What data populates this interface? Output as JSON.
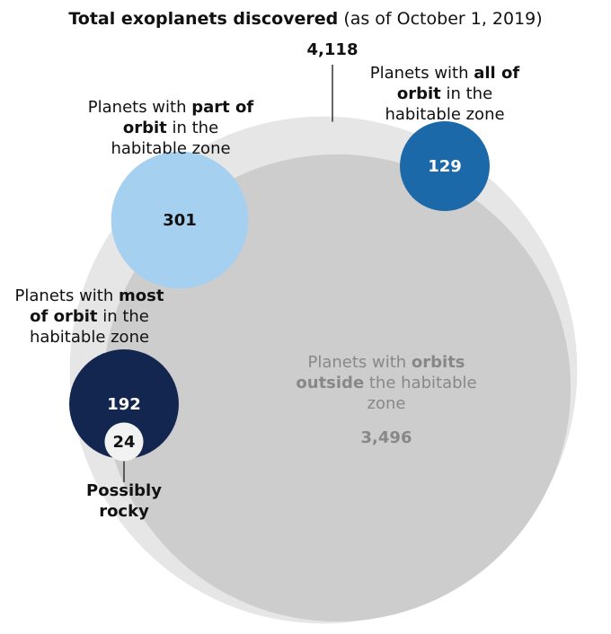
{
  "chart_data": {
    "type": "bubble",
    "title": "Total exoplanets discovered",
    "subtitle": "(as of October 1, 2019)",
    "total": {
      "value": 4118,
      "value_label": "4,118",
      "color": "#e6e6e6"
    },
    "groups": [
      {
        "label": [
          "Planets with ",
          "part of orbit",
          " in the habitable zone"
        ],
        "value": 301,
        "color": "#a6d0ef",
        "label_color": "#111111"
      },
      {
        "label": [
          "Planets with ",
          "all of orbit",
          " in the habitable zone"
        ],
        "value": 129,
        "color": "#1b69a8",
        "label_color": "#ffffff"
      },
      {
        "label": [
          "Planets with ",
          "most of orbit",
          " in the habitable zone"
        ],
        "value": 192,
        "color": "#13264f",
        "label_color": "#ffffff"
      },
      {
        "label": [
          "Possibly rocky"
        ],
        "value": 24,
        "color": "#f2f2f2",
        "label_color": "#111111"
      },
      {
        "label": [
          "Planets with ",
          "orbits outside",
          " the habitable zone"
        ],
        "value": 3496,
        "value_label": "3,496",
        "color": "#cdcdcd",
        "label_color": "#888888"
      }
    ]
  }
}
